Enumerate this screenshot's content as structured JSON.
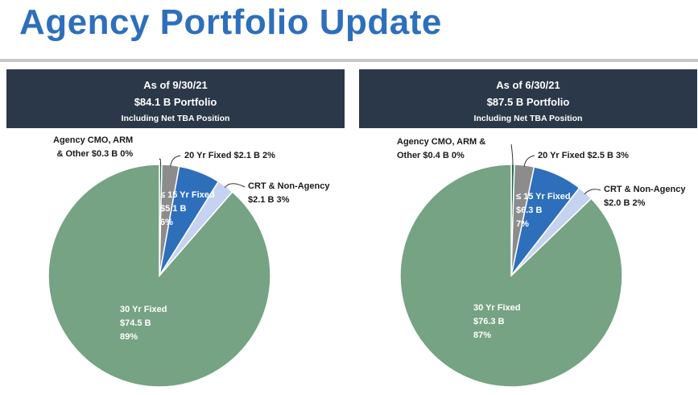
{
  "page_title": "Agency Portfolio Update",
  "colors": {
    "title": "#2e6fbc",
    "header_bg": "#2b3849",
    "thirty_yr": "#76a383",
    "fifteen_yr": "#2e6fbc",
    "twenty_yr": "#8c8c8c",
    "crt": "#c6d3f0",
    "cmo": "#1f6b4f"
  },
  "chart_data": [
    {
      "type": "pie",
      "header": {
        "as_of": "As of 9/30/21",
        "portfolio": "$84.1 B Portfolio",
        "subtitle": "Including Net TBA Position"
      },
      "slices": [
        {
          "key": "cmo",
          "name": "Agency CMO, ARM & Other",
          "amount": 0.3,
          "percent": 0,
          "label_lines": [
            "Agency CMO, ARM",
            "& Other $0.3 B 0%"
          ]
        },
        {
          "key": "twenty_yr",
          "name": "20 Yr Fixed",
          "amount": 2.1,
          "percent": 2,
          "label_lines": [
            "20 Yr Fixed $2.1 B 2%"
          ]
        },
        {
          "key": "fifteen_yr",
          "name": "≤ 15 Yr Fixed",
          "amount": 5.1,
          "percent": 6,
          "label_lines": [
            "≤ 15 Yr Fixed",
            "$5.1 B",
            "6%"
          ]
        },
        {
          "key": "crt",
          "name": "CRT & Non-Agency",
          "amount": 2.1,
          "percent": 3,
          "label_lines": [
            "CRT & Non-Agency",
            "$2.1 B 3%"
          ]
        },
        {
          "key": "thirty_yr",
          "name": "30 Yr Fixed",
          "amount": 74.5,
          "percent": 89,
          "label_lines": [
            "30 Yr Fixed",
            "$74.5 B",
            "89%"
          ]
        }
      ]
    },
    {
      "type": "pie",
      "header": {
        "as_of": "As of 6/30/21",
        "portfolio": "$87.5 B Portfolio",
        "subtitle": "Including Net TBA Position"
      },
      "slices": [
        {
          "key": "cmo",
          "name": "Agency CMO, ARM & Other",
          "amount": 0.4,
          "percent": 0,
          "label_lines": [
            "Agency CMO, ARM & Other $0.4 B 0%"
          ]
        },
        {
          "key": "twenty_yr",
          "name": "20 Yr Fixed",
          "amount": 2.5,
          "percent": 3,
          "label_lines": [
            "20 Yr Fixed $2.5 B 3%"
          ]
        },
        {
          "key": "fifteen_yr",
          "name": "≤ 15 Yr Fixed",
          "amount": 6.3,
          "percent": 7,
          "label_lines": [
            "≤ 15 Yr Fixed",
            "$6.3 B",
            "7%"
          ]
        },
        {
          "key": "crt",
          "name": "CRT & Non-Agency",
          "amount": 2.0,
          "percent": 2,
          "label_lines": [
            "CRT & Non-Agency",
            "$2.0 B 2%"
          ]
        },
        {
          "key": "thirty_yr",
          "name": "30 Yr Fixed",
          "amount": 76.3,
          "percent": 87,
          "label_lines": [
            "30 Yr Fixed",
            "$76.3 B",
            "87%"
          ]
        }
      ]
    }
  ]
}
